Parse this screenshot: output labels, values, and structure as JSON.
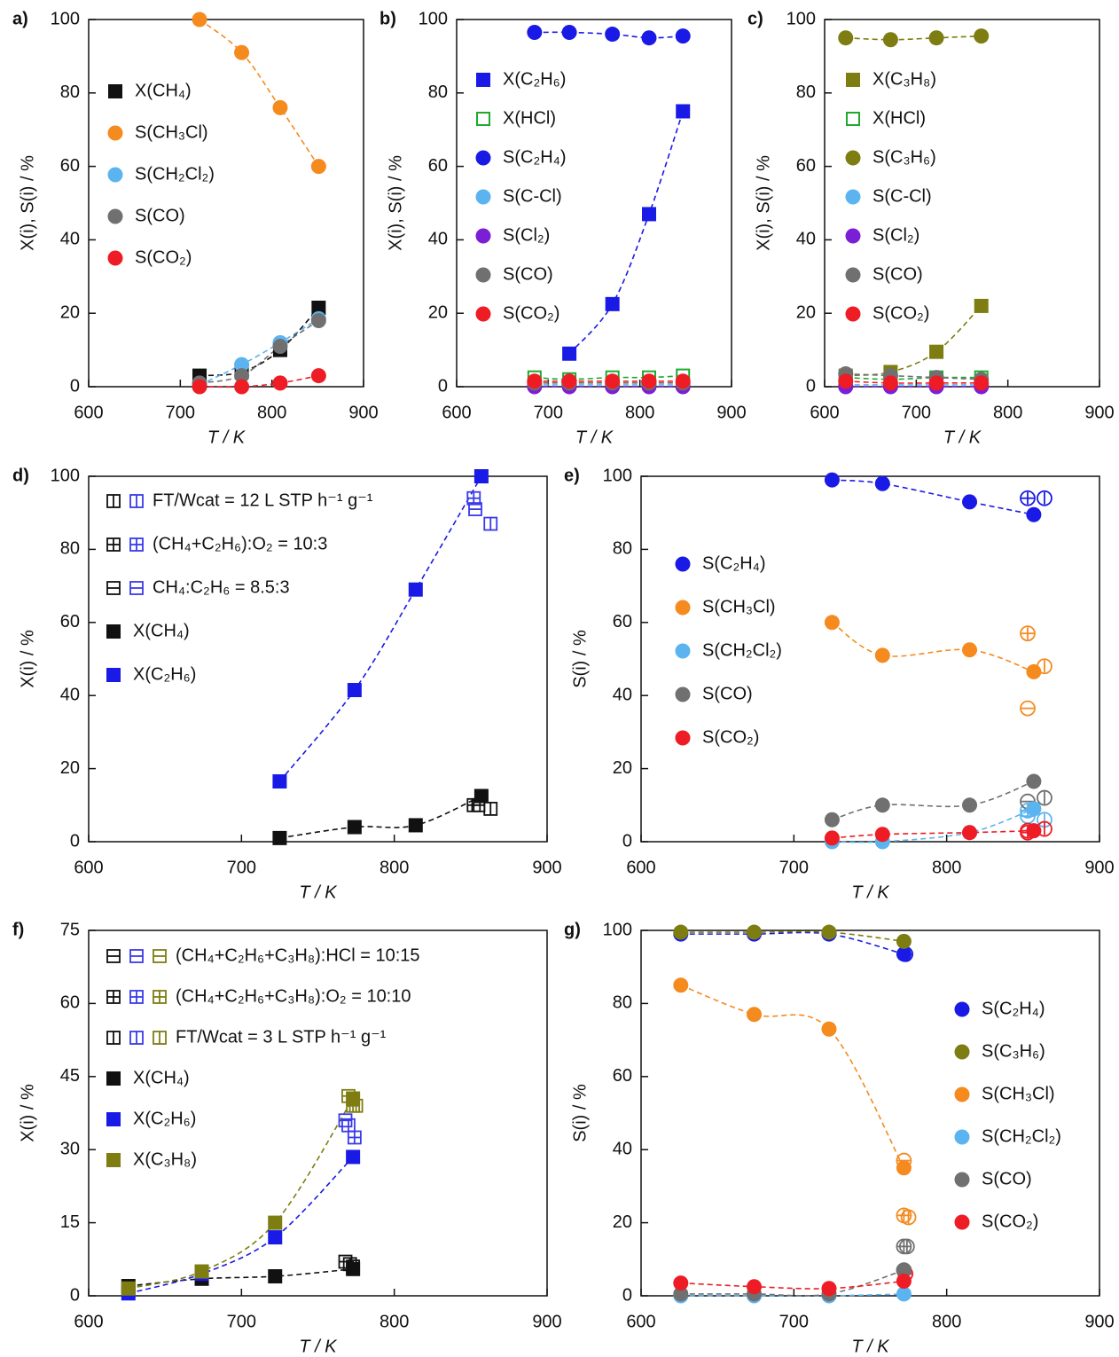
{
  "chart_data": [
    {
      "type": "scatter",
      "panel": "a)",
      "xlabel": "T / K",
      "ylabel": "X(i), S(i) / %",
      "xlim": [
        600,
        900
      ],
      "xticks": [
        600,
        700,
        800,
        900
      ],
      "ylim": [
        0,
        100
      ],
      "yticks": [
        0,
        20,
        40,
        60,
        80,
        100
      ],
      "x": [
        721,
        767,
        809,
        851
      ],
      "series": [
        {
          "name": "X(CH₄)",
          "color": "#111111",
          "marker": "square",
          "values": [
            3,
            4,
            10,
            21.5
          ]
        },
        {
          "name": "S(CH₃Cl)",
          "color": "#f58a1f",
          "marker": "circle",
          "values": [
            100,
            91,
            76,
            60
          ]
        },
        {
          "name": "S(CH₂Cl₂)",
          "color": "#5bb4f0",
          "marker": "circle",
          "values": [
            0.5,
            6,
            12,
            18.5
          ]
        },
        {
          "name": "S(CO)",
          "color": "#707070",
          "marker": "circle",
          "values": [
            1,
            3,
            11,
            18
          ]
        },
        {
          "name": "S(CO₂)",
          "color": "#ee1c24",
          "marker": "circle",
          "values": [
            0,
            0,
            1,
            3
          ]
        }
      ]
    },
    {
      "type": "scatter",
      "panel": "b)",
      "xlabel": "T / K",
      "ylabel": "X(i), S(i) / %",
      "xlim": [
        600,
        900
      ],
      "xticks": [
        600,
        700,
        800,
        900
      ],
      "ylim": [
        0,
        100
      ],
      "yticks": [
        0,
        20,
        40,
        60,
        80,
        100
      ],
      "x": [
        685,
        723,
        770,
        810,
        847
      ],
      "series": [
        {
          "name": "X(C₂H₆)",
          "color": "#1a1ae6",
          "marker": "square",
          "values": [
            null,
            9,
            22.5,
            47,
            75
          ]
        },
        {
          "name": "X(HCl)",
          "color": "#1faa2e",
          "marker": "square-open",
          "values": [
            2.5,
            2,
            2.5,
            2.5,
            3
          ]
        },
        {
          "name": "S(C₂H₄)",
          "color": "#1a1ae6",
          "marker": "circle",
          "values": [
            96.5,
            96.5,
            96,
            95,
            95.5
          ]
        },
        {
          "name": "S(C-Cl)",
          "color": "#5bb4f0",
          "marker": "circle",
          "values": [
            0.5,
            0.5,
            0.5,
            0.5,
            0.5
          ]
        },
        {
          "name": "S(Cl₂)",
          "color": "#7b1fd6",
          "marker": "circle",
          "values": [
            0,
            0,
            0,
            0,
            0
          ]
        },
        {
          "name": "S(CO)",
          "color": "#707070",
          "marker": "circle",
          "values": [
            1,
            1,
            1,
            1,
            1
          ]
        },
        {
          "name": "S(CO₂)",
          "color": "#ee1c24",
          "marker": "circle",
          "values": [
            1.5,
            1.5,
            1.5,
            1.5,
            1.5
          ]
        }
      ]
    },
    {
      "type": "scatter",
      "panel": "c)",
      "xlabel": "T / K",
      "ylabel": "X(i), S(i) / %",
      "xlim": [
        600,
        900
      ],
      "xticks": [
        600,
        700,
        800,
        900
      ],
      "ylim": [
        0,
        100
      ],
      "yticks": [
        0,
        20,
        40,
        60,
        80,
        100
      ],
      "x": [
        623,
        672,
        722,
        771
      ],
      "series": [
        {
          "name": "X(C₃H₈)",
          "color": "#7d7d12",
          "marker": "square",
          "values": [
            3,
            4,
            9.5,
            22
          ]
        },
        {
          "name": "X(HCl)",
          "color": "#1faa2e",
          "marker": "square-open",
          "values": [
            2.5,
            2,
            2.5,
            2.5
          ]
        },
        {
          "name": "S(C₃H₆)",
          "color": "#7d7d12",
          "marker": "circle",
          "values": [
            95,
            94.5,
            95,
            95.5
          ]
        },
        {
          "name": "S(C-Cl)",
          "color": "#5bb4f0",
          "marker": "circle",
          "values": [
            0.5,
            0.5,
            0.5,
            0.5
          ]
        },
        {
          "name": "S(Cl₂)",
          "color": "#7b1fd6",
          "marker": "circle",
          "values": [
            0,
            0,
            0,
            0
          ]
        },
        {
          "name": "S(CO)",
          "color": "#707070",
          "marker": "circle",
          "values": [
            3.5,
            3,
            2.5,
            2
          ]
        },
        {
          "name": "S(CO₂)",
          "color": "#ee1c24",
          "marker": "circle",
          "values": [
            1.5,
            1,
            1,
            1
          ]
        }
      ]
    },
    {
      "type": "scatter",
      "panel": "d)",
      "xlabel": "T / K",
      "ylabel": "X(i) / %",
      "xlim": [
        600,
        900
      ],
      "xticks": [
        600,
        700,
        800,
        900
      ],
      "ylim": [
        0,
        100
      ],
      "yticks": [
        0,
        20,
        40,
        60,
        80,
        100
      ],
      "x": [
        725,
        774,
        814,
        857
      ],
      "conditions": [
        {
          "label": "FT/Wcat = 12 L STP h⁻¹ g⁻¹",
          "marker": "square-v",
          "series": [
            {
              "color": "#111111",
              "x": [
                863
              ],
              "values": [
                9
              ]
            },
            {
              "color": "#3a3aeb",
              "x": [
                863
              ],
              "values": [
                87
              ]
            }
          ]
        },
        {
          "label": "(CH₄+C₂H₆):O₂ = 10:3",
          "marker": "square-plus",
          "series": [
            {
              "color": "#111111",
              "x": [
                852
              ],
              "values": [
                10
              ]
            },
            {
              "color": "#3a3aeb",
              "x": [
                852
              ],
              "values": [
                94
              ]
            }
          ]
        },
        {
          "label": "CH₄:C₂H₆ = 8.5:3",
          "marker": "square-h",
          "series": [
            {
              "color": "#111111",
              "x": [
                855
              ],
              "values": [
                10
              ]
            },
            {
              "color": "#3a3aeb",
              "x": [
                853
              ],
              "values": [
                91
              ]
            }
          ]
        }
      ],
      "series": [
        {
          "name": "X(CH₄)",
          "color": "#111111",
          "marker": "square",
          "values": [
            1,
            4,
            4.5,
            12.5
          ]
        },
        {
          "name": "X(C₂H₆)",
          "color": "#1a1ae6",
          "marker": "square",
          "values": [
            16.5,
            41.5,
            69,
            100
          ]
        }
      ]
    },
    {
      "type": "scatter",
      "panel": "e)",
      "xlabel": "T / K",
      "ylabel": "S(i) / %",
      "xlim": [
        600,
        900
      ],
      "xticks": [
        600,
        700,
        800,
        900
      ],
      "ylim": [
        0,
        100
      ],
      "yticks": [
        0,
        20,
        40,
        60,
        80,
        100
      ],
      "x": [
        725,
        758,
        815,
        857
      ],
      "conditions": [
        {
          "marker": "circle-v",
          "series": [
            {
              "color": "#1a1ae6",
              "x": [
                864
              ],
              "values": [
                94
              ]
            },
            {
              "color": "#f58a1f",
              "x": [
                864
              ],
              "values": [
                48
              ]
            },
            {
              "color": "#707070",
              "x": [
                864
              ],
              "values": [
                12
              ]
            },
            {
              "color": "#5bb4f0",
              "x": [
                864
              ],
              "values": [
                6
              ]
            },
            {
              "color": "#ee1c24",
              "x": [
                864
              ],
              "values": [
                3.5
              ]
            }
          ]
        },
        {
          "marker": "circle-plus",
          "series": [
            {
              "color": "#1a1ae6",
              "x": [
                853
              ],
              "values": [
                94
              ]
            },
            {
              "color": "#f58a1f",
              "x": [
                853
              ],
              "values": [
                57
              ]
            },
            {
              "color": "#5bb4f0",
              "x": [
                853
              ],
              "values": [
                8.5
              ]
            },
            {
              "color": "#ee1c24",
              "x": [
                853
              ],
              "values": [
                2.5
              ]
            }
          ]
        },
        {
          "marker": "circle-h",
          "series": [
            {
              "color": "#f58a1f",
              "x": [
                853
              ],
              "values": [
                36.5
              ]
            },
            {
              "color": "#707070",
              "x": [
                853
              ],
              "values": [
                11
              ]
            },
            {
              "color": "#5bb4f0",
              "x": [
                853
              ],
              "values": [
                7
              ]
            },
            {
              "color": "#ee1c24",
              "x": [
                853
              ],
              "values": [
                3
              ]
            }
          ]
        }
      ],
      "series": [
        {
          "name": "S(C₂H₄)",
          "color": "#1a1ae6",
          "marker": "circle",
          "values": [
            99,
            98,
            93,
            89.5
          ]
        },
        {
          "name": "S(CH₃Cl)",
          "color": "#f58a1f",
          "marker": "circle",
          "values": [
            60,
            51,
            52.5,
            46.5
          ]
        },
        {
          "name": "S(CH₂Cl₂)",
          "color": "#5bb4f0",
          "marker": "circle",
          "values": [
            0,
            0,
            2.5,
            9
          ]
        },
        {
          "name": "S(CO)",
          "color": "#707070",
          "marker": "circle",
          "values": [
            6,
            10,
            10,
            16.5
          ]
        },
        {
          "name": "S(CO₂)",
          "color": "#ee1c24",
          "marker": "circle",
          "values": [
            1,
            2,
            2.5,
            3
          ]
        }
      ]
    },
    {
      "type": "scatter",
      "panel": "f)",
      "xlabel": "T / K",
      "ylabel": "X(i) / %",
      "xlim": [
        600,
        900
      ],
      "xticks": [
        600,
        700,
        800,
        900
      ],
      "ylim": [
        0,
        75
      ],
      "yticks": [
        0,
        15,
        30,
        45,
        60,
        75
      ],
      "x": [
        626,
        674,
        722,
        773
      ],
      "conditions": [
        {
          "label": "(CH₄+C₂H₆+C₃H₈):HCl = 10:15",
          "marker": "square-h",
          "series": [
            {
              "color": "#111111",
              "x": [
                768
              ],
              "values": [
                7
              ]
            },
            {
              "color": "#3a3aeb",
              "x": [
                768
              ],
              "values": [
                36
              ]
            },
            {
              "color": "#7d7d12",
              "x": [
                770
              ],
              "values": [
                41
              ]
            }
          ]
        },
        {
          "label": "(CH₄+C₂H₆+C₃H₈):O₂ = 10:10",
          "marker": "square-plus",
          "series": [
            {
              "color": "#111111",
              "x": [
                773
              ],
              "values": [
                6
              ]
            },
            {
              "color": "#3a3aeb",
              "x": [
                774
              ],
              "values": [
                32.5
              ]
            },
            {
              "color": "#7d7d12",
              "x": [
                773
              ],
              "values": [
                39
              ]
            }
          ]
        },
        {
          "label": "FT/Wcat = 3 L STP h⁻¹ g⁻¹",
          "marker": "square-v",
          "series": [
            {
              "color": "#111111",
              "x": [
                771
              ],
              "values": [
                6.5
              ]
            },
            {
              "color": "#3a3aeb",
              "x": [
                770
              ],
              "values": [
                35
              ]
            },
            {
              "color": "#7d7d12",
              "x": [
                775
              ],
              "values": [
                39
              ]
            }
          ]
        }
      ],
      "series": [
        {
          "name": "X(CH₄)",
          "color": "#111111",
          "marker": "square",
          "values": [
            2,
            3.5,
            4,
            5.5
          ]
        },
        {
          "name": "X(C₂H₆)",
          "color": "#1a1ae6",
          "marker": "square",
          "values": [
            0.5,
            4.5,
            12,
            28.5
          ]
        },
        {
          "name": "X(C₃H₈)",
          "color": "#7d7d12",
          "marker": "square",
          "values": [
            1.5,
            5,
            15,
            40.5
          ]
        }
      ]
    },
    {
      "type": "scatter",
      "panel": "g)",
      "xlabel": "T / K",
      "ylabel": "S(i) / %",
      "xlim": [
        600,
        900
      ],
      "xticks": [
        600,
        700,
        800,
        900
      ],
      "ylim": [
        0,
        100
      ],
      "yticks": [
        0,
        20,
        40,
        60,
        80,
        100
      ],
      "x": [
        626,
        674,
        723,
        772
      ],
      "conditions": [
        {
          "marker": "circle-v",
          "series": [
            {
              "color": "#f58a1f",
              "x": [
                775
              ],
              "values": [
                21.5
              ]
            },
            {
              "color": "#707070",
              "x": [
                774
              ],
              "values": [
                13.5
              ]
            }
          ]
        },
        {
          "marker": "circle-plus",
          "series": [
            {
              "color": "#f58a1f",
              "x": [
                772
              ],
              "values": [
                22
              ]
            },
            {
              "color": "#707070",
              "x": [
                772
              ],
              "values": [
                13.5
              ]
            },
            {
              "color": "#1a1ae6",
              "x": [
                773
              ],
              "values": [
                93.5
              ]
            }
          ]
        },
        {
          "marker": "circle-h",
          "series": [
            {
              "color": "#f58a1f",
              "x": [
                772
              ],
              "values": [
                37
              ]
            },
            {
              "color": "#707070",
              "x": [
                772
              ],
              "values": [
                7
              ]
            },
            {
              "color": "#ee1c24",
              "x": [
                773
              ],
              "values": [
                6
              ]
            }
          ]
        }
      ],
      "series": [
        {
          "name": "S(C₂H₄)",
          "color": "#1a1ae6",
          "marker": "circle",
          "values": [
            99,
            99,
            99,
            93.5
          ]
        },
        {
          "name": "S(C₃H₆)",
          "color": "#7d7d12",
          "marker": "circle",
          "values": [
            99.5,
            99.5,
            99.5,
            97
          ]
        },
        {
          "name": "S(CH₃Cl)",
          "color": "#f58a1f",
          "marker": "circle",
          "values": [
            85,
            77,
            73,
            35
          ]
        },
        {
          "name": "S(CH₂Cl₂)",
          "color": "#5bb4f0",
          "marker": "circle",
          "values": [
            0,
            0,
            0,
            0.5
          ]
        },
        {
          "name": "S(CO)",
          "color": "#707070",
          "marker": "circle",
          "values": [
            0.5,
            0.5,
            0.5,
            7
          ]
        },
        {
          "name": "S(CO₂)",
          "color": "#ee1c24",
          "marker": "circle",
          "values": [
            3.5,
            2.5,
            2,
            4
          ]
        }
      ]
    }
  ]
}
